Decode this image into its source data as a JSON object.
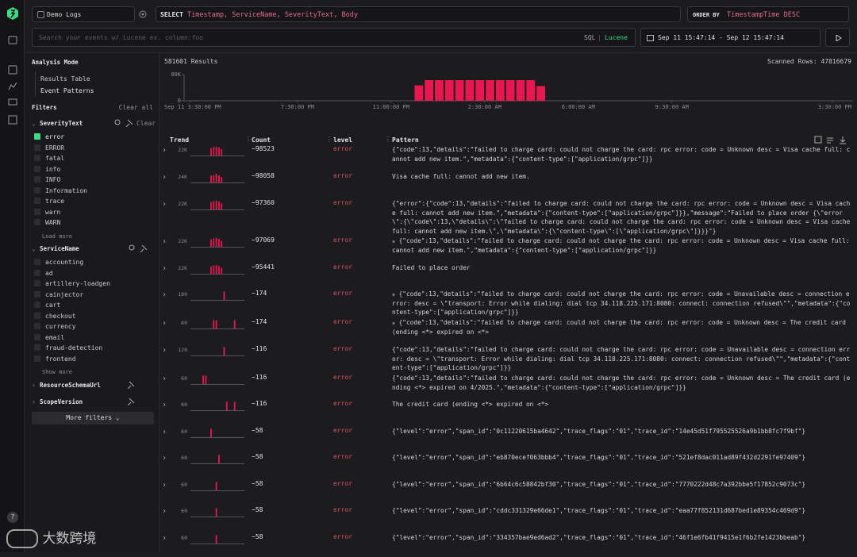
{
  "source": "Demo Logs",
  "query": {
    "select_keyword": "SELECT",
    "select": "Timestamp, ServiceName, SeverityText, Body",
    "order_keyword": "ORDER BY",
    "order": "TimestampTime DESC",
    "search_placeholder": "Search your events w/ Lucene ex. column:foo",
    "mode_sql": "SQL",
    "mode_separator": "|",
    "mode_lucene": "Lucene",
    "time_range": "Sep 11 15:47:14 - Sep 12 15:47:14"
  },
  "sidebar": {
    "analysis_title": "Analysis Mode",
    "modes": [
      "Results Table",
      "Event Patterns"
    ],
    "filters_title": "Filters",
    "clear_all": "Clear all",
    "groups": [
      {
        "name": "SeverityText",
        "clear": "Clear",
        "items": [
          {
            "label": "error",
            "checked": true
          },
          {
            "label": "ERROR"
          },
          {
            "label": "fatal"
          },
          {
            "label": "info"
          },
          {
            "label": "INFO"
          },
          {
            "label": "Information"
          },
          {
            "label": "trace"
          },
          {
            "label": "warn"
          },
          {
            "label": "WARN"
          }
        ],
        "more": "Load more"
      },
      {
        "name": "ServiceName",
        "items": [
          {
            "label": "accounting"
          },
          {
            "label": "ad"
          },
          {
            "label": "artillery-loadgen"
          },
          {
            "label": "cainjector"
          },
          {
            "label": "cart"
          },
          {
            "label": "checkout"
          },
          {
            "label": "currency"
          },
          {
            "label": "email"
          },
          {
            "label": "fraud-detection"
          },
          {
            "label": "frontend"
          }
        ],
        "more": "Show more"
      },
      {
        "name": "ResourceSchemaUrl"
      },
      {
        "name": "ScopeVersion"
      }
    ],
    "more_filters": "More filters"
  },
  "results": {
    "count": "581601 Results",
    "scanned": "Scanned Rows: 47816679"
  },
  "chart_data": {
    "type": "histogram",
    "color": "#e8174f",
    "bins": [
      8.35,
      8.73,
      9.11,
      9.49,
      9.87,
      10.25,
      10.63,
      11.01,
      11.39,
      11.77,
      12.15,
      12.53,
      12.91,
      13.29
    ],
    "values": [
      47000,
      63000,
      63000,
      63000,
      63000,
      63000,
      63000,
      63000,
      63000,
      63000,
      63000,
      63000,
      45000
    ],
    "xlim": [
      0,
      24
    ],
    "xticks": [
      {
        "value": 0,
        "label": "Sep 11 3:30:00 PM"
      },
      {
        "value": 4,
        "label": "7:30:00 PM"
      },
      {
        "value": 7.5,
        "label": "11:00:00 PM"
      },
      {
        "value": 11,
        "label": "2:30:00 AM"
      },
      {
        "value": 14.5,
        "label": "6:00:00 AM"
      },
      {
        "value": 18,
        "label": "9:30:00 AM"
      },
      {
        "value": 24,
        "label": "3:30:00 PM"
      }
    ],
    "ylim": [
      0,
      80000
    ],
    "yticks": [
      0,
      {
        "value": 80000,
        "label": "80K"
      }
    ]
  },
  "table": {
    "headers": [
      "Trend",
      "Count",
      "level",
      "Pattern"
    ],
    "rows": [
      {
        "trend_max": {
          "value": 22000,
          "label": "22K"
        },
        "trend": [
          0,
          0,
          0,
          0,
          0,
          0,
          0,
          18500,
          21500,
          22000,
          20500,
          16000,
          0,
          0,
          0,
          0,
          0,
          0,
          0,
          0
        ],
        "count": "~98523",
        "level": "error",
        "pattern": "{\"code\":13,\"details\":\"failed to charge card: could not charge the card: rpc error: code = Unknown desc = Visa cache full: cannot add new item.\",\"metadata\":{\"content-type\":[\"application/grpc\"]}}"
      },
      {
        "trend_max": {
          "value": 24000,
          "label": "24K"
        },
        "trend": [
          0,
          0,
          0,
          0,
          0,
          0,
          0,
          19000,
          20500,
          24000,
          19500,
          15000,
          0,
          0,
          0,
          0,
          0,
          0,
          0,
          0
        ],
        "count": "~98058",
        "level": "error",
        "pattern": "Visa cache full: cannot add new item."
      },
      {
        "trend_max": {
          "value": 22000,
          "label": "22K"
        },
        "trend": [
          0,
          0,
          0,
          0,
          0,
          0,
          0,
          19000,
          21000,
          22000,
          20000,
          15300,
          0,
          0,
          0,
          0,
          0,
          0,
          0,
          0
        ],
        "count": "~97360",
        "level": "error",
        "pattern": "{\"error\":{\"code\":13,\"details\":\"failed to charge card: could not charge the card: rpc error: code = Unknown desc = Visa cache full: cannot add new item.\",\"metadata\":{\"content-type\":[\"application/grpc\"]}},\"message\":\"Failed to place order {\\\"error\\\":{\\\"code\\\":13,\\\"details\\\":\\\"failed to charge card: could not charge the card: rpc error: code = Unknown desc = Visa cache full: cannot add new item.\\\",\\\"metadata\\\":{\\\"content-type\\\":[\\\"application/grpc\\\"]}}}\"}"
      },
      {
        "trend_max": {
          "value": 22000,
          "label": "22K"
        },
        "trend": [
          0,
          0,
          0,
          0,
          0,
          0,
          0,
          18800,
          21000,
          22000,
          20000,
          15200,
          0,
          0,
          0,
          0,
          0,
          0,
          0,
          0
        ],
        "count": "~97069",
        "level": "error",
        "pattern": "⁎ {\"code\":13,\"details\":\"failed to charge card: could not charge the card: rpc error: code = Unknown desc = Visa cache full: cannot add new item.\",\"metadata\":{\"content-type\":[\"application/grpc\"]}}"
      },
      {
        "trend_max": {
          "value": 22000,
          "label": "22K"
        },
        "trend": [
          0,
          0,
          0,
          0,
          0,
          0,
          0,
          18500,
          20500,
          22000,
          19500,
          14900,
          0,
          0,
          0,
          0,
          0,
          0,
          0,
          0
        ],
        "count": "~95441",
        "level": "error",
        "pattern": "Failed to place order"
      },
      {
        "trend_max": 180,
        "trend": [
          0,
          0,
          0,
          0,
          0,
          0,
          0,
          0,
          0,
          0,
          0,
          0,
          174,
          0,
          0,
          0,
          0,
          0,
          0,
          0
        ],
        "count": "~174",
        "level": "error",
        "pattern": "⁎ {\"code\":13,\"details\":\"failed to charge card: could not charge the card: rpc error: code = Unavailable desc = connection error: desc = \\\"transport: Error while dialing: dial tcp 34.118.225.171:8080: connect: connection refused\\\"\",\"metadata\":{\"content-type\":[\"application/grpc\"]}}"
      },
      {
        "trend_max": 60,
        "trend": [
          0,
          0,
          0,
          0,
          0,
          0,
          0,
          0,
          58,
          58,
          0,
          0,
          0,
          0,
          0,
          0,
          58,
          0,
          0,
          0
        ],
        "count": "~174",
        "level": "error",
        "pattern": "⁎ {\"code\":13,\"details\":\"failed to charge card: could not charge the card: rpc error: code = Unknown desc = The credit card (ending <*> expired on <*>"
      },
      {
        "trend_max": 120,
        "trend": [
          0,
          0,
          0,
          0,
          0,
          0,
          0,
          0,
          0,
          0,
          0,
          0,
          116,
          0,
          0,
          0,
          0,
          0,
          0,
          0
        ],
        "count": "~116",
        "level": "error",
        "pattern": "{\"code\":13,\"details\":\"failed to charge card: could not charge the card: rpc error: code = Unavailable desc = connection error: desc = \\\"transport: Error while dialing: dial tcp 34.118.225.171:8080: connect: connection refused\\\"\",\"metadata\":{\"content-type\":[\"application/grpc\"]}}"
      },
      {
        "trend_max": 60,
        "trend": [
          0,
          0,
          0,
          0,
          58,
          58,
          0,
          0,
          0,
          0,
          0,
          0,
          0,
          0,
          0,
          0,
          0,
          0,
          0,
          0
        ],
        "count": "~116",
        "level": "error",
        "pattern": "{\"code\":13,\"details\":\"failed to charge card: could not charge the card: rpc error: code = Unknown desc = The credit card (ending <*> expired on 4/2025.\",\"metadata\":{\"content-type\":[\"application/grpc\"]}}"
      },
      {
        "trend_max": 60,
        "trend": [
          0,
          0,
          0,
          0,
          0,
          0,
          0,
          0,
          0,
          0,
          0,
          0,
          0,
          58,
          0,
          0,
          58,
          0,
          0,
          0
        ],
        "count": "~116",
        "level": "error",
        "pattern": "The credit card (ending <*> expired on <*>"
      },
      {
        "trend_max": 60,
        "trend": [
          0,
          0,
          0,
          0,
          0,
          0,
          0,
          58,
          0,
          0,
          0,
          0,
          0,
          0,
          0,
          0,
          0,
          0,
          0,
          0
        ],
        "count": "~58",
        "level": "error",
        "pattern": "{\"level\":\"error\",\"span_id\":\"0c11220615ba4642\",\"trace_flags\":\"01\",\"trace_id\":\"14e45d51f795525526a9b1bb8fc7f9bf\"}"
      },
      {
        "trend_max": 60,
        "trend": [
          0,
          0,
          0,
          0,
          0,
          0,
          0,
          0,
          0,
          0,
          58,
          0,
          0,
          0,
          0,
          0,
          0,
          0,
          0,
          0
        ],
        "count": "~58",
        "level": "error",
        "pattern": "{\"level\":\"error\",\"span_id\":\"eb870ecef063bbb4\",\"trace_flags\":\"01\",\"trace_id\":\"521ef8dac011ad89f432d2291fe97409\"}"
      },
      {
        "trend_max": 60,
        "trend": [
          0,
          0,
          0,
          0,
          0,
          0,
          0,
          0,
          0,
          58,
          0,
          0,
          0,
          0,
          0,
          0,
          0,
          0,
          0,
          0
        ],
        "count": "~58",
        "level": "error",
        "pattern": "{\"level\":\"error\",\"span_id\":\"6b64c6c58842bf30\",\"trace_flags\":\"01\",\"trace_id\":\"7770222d48c7a392bbe5f17852c9073c\"}"
      },
      {
        "trend_max": 60,
        "trend": [
          0,
          0,
          0,
          0,
          0,
          0,
          0,
          0,
          0,
          58,
          0,
          0,
          0,
          0,
          0,
          0,
          0,
          0,
          0,
          0
        ],
        "count": "~58",
        "level": "error",
        "pattern": "{\"level\":\"error\",\"span_id\":\"cddc331329e66de1\",\"trace_flags\":\"01\",\"trace_id\":\"eaa77f852131d687bed1e89354c469d9\"}"
      },
      {
        "trend_max": 60,
        "trend": [
          0,
          0,
          0,
          0,
          0,
          0,
          0,
          0,
          0,
          58,
          0,
          0,
          0,
          0,
          0,
          0,
          0,
          0,
          0,
          0
        ],
        "count": "~58",
        "level": "error",
        "pattern": "{\"level\":\"error\",\"span_id\":\"334357bae9ed6ad2\",\"trace_flags\":\"01\",\"trace_id\":\"46f1e6fb41f9415e1f6b2fe1423bbeab\"}"
      }
    ]
  },
  "help": "?",
  "watermark": "大数跨境"
}
